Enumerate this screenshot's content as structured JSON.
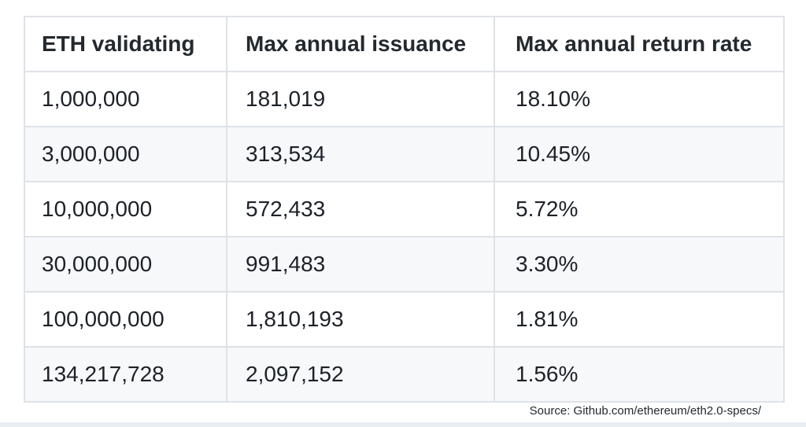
{
  "chart_data": {
    "type": "table",
    "title": "",
    "columns": [
      "ETH validating",
      "Max annual issuance",
      "Max annual return rate"
    ],
    "rows": [
      [
        "1,000,000",
        "181,019",
        "18.10%"
      ],
      [
        "3,000,000",
        "313,534",
        "10.45%"
      ],
      [
        "10,000,000",
        "572,433",
        "5.72%"
      ],
      [
        "30,000,000",
        "991,483",
        "3.30%"
      ],
      [
        "100,000,000",
        "1,810,193",
        "1.81%"
      ],
      [
        "134,217,728",
        "2,097,152",
        "1.56%"
      ]
    ],
    "layout_hints": {
      "striped_rows": "even rows shaded",
      "header_position": "top",
      "grid": "full cell borders"
    }
  },
  "source": {
    "label": "Source: Github.com/ethereum/eth2.0-specs/"
  },
  "colors": {
    "text": "#1d2127",
    "border": "#dfe2e6",
    "row_stripe": "#f6f8fa",
    "background": "#ffffff",
    "bottom_strip": "#e9eef3"
  }
}
